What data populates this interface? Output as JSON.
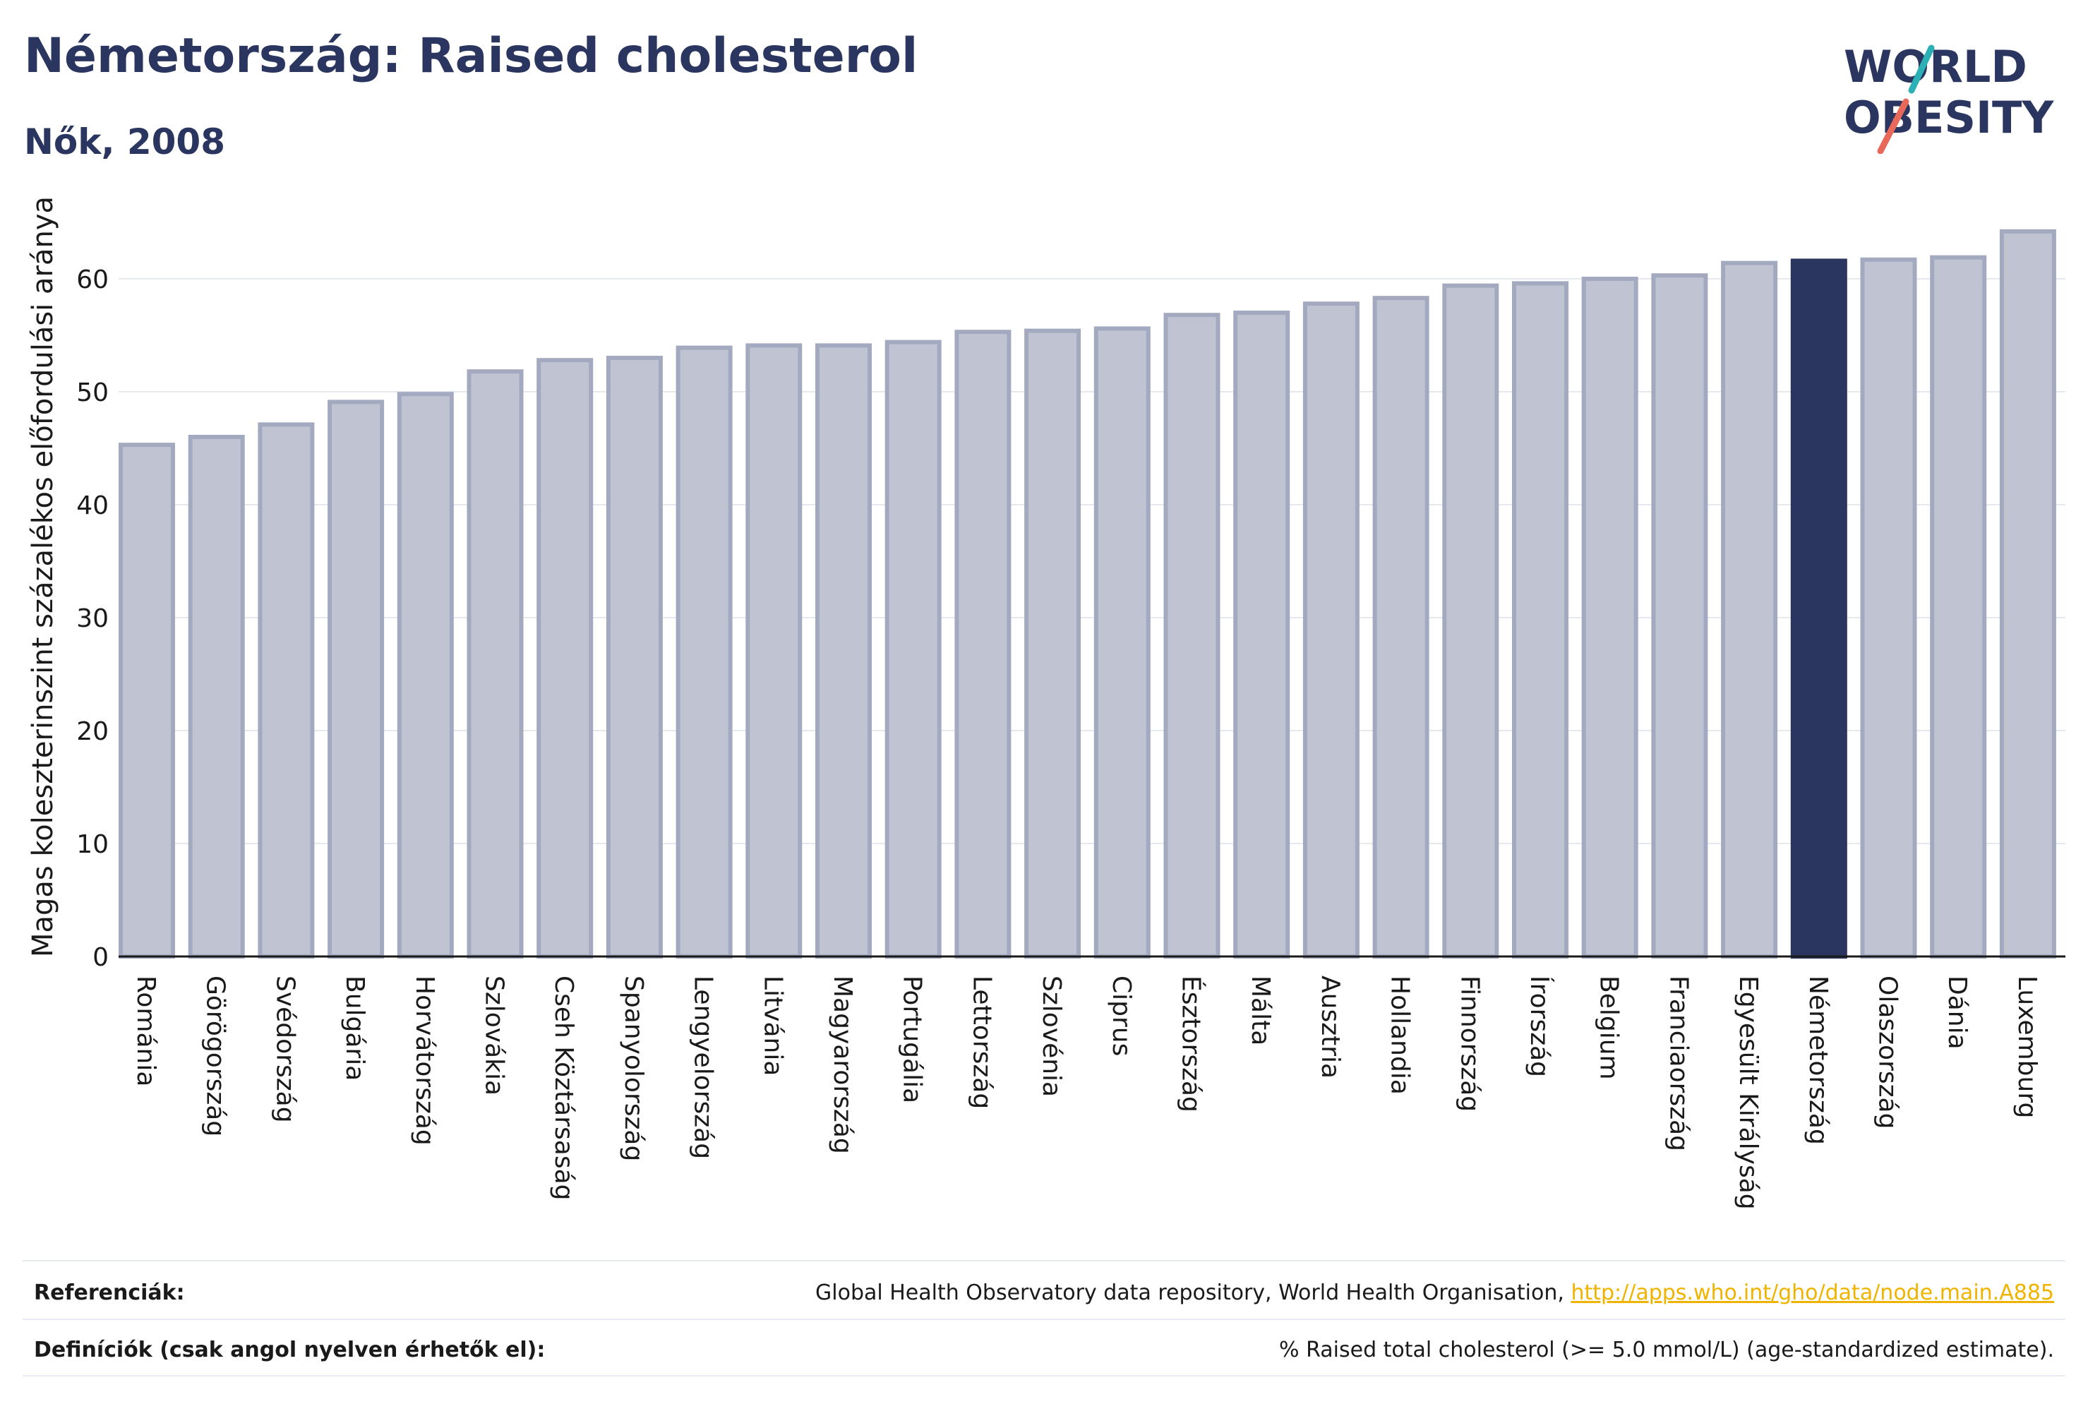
{
  "title": "Németország: Raised cholesterol",
  "subtitle": "Nők, 2008",
  "logo": {
    "line1": "WORLD",
    "line2": "OBESITY",
    "text_color": "#2a3560",
    "slash_colors": [
      "#2ab0b5",
      "#e8695a"
    ]
  },
  "colors": {
    "bar_fill": "#c0c4d2",
    "bar_stroke": "#a3aac0",
    "highlight": "#2a3560",
    "grid": "#e6e8ef",
    "axis": "#1a1a1a"
  },
  "chart_data": {
    "type": "bar",
    "ylabel": "Magas koleszterinszint százalékos előfordulási aránya",
    "ylim": [
      0,
      65
    ],
    "yticks": [
      0,
      10,
      20,
      30,
      40,
      50,
      60
    ],
    "grid": true,
    "highlight_category": "Németország",
    "categories": [
      "Románia",
      "Görögország",
      "Svédország",
      "Bulgária",
      "Horvátország",
      "Szlovákia",
      "Cseh Köztársaság",
      "Spanyolország",
      "Lengyelország",
      "Litvánia",
      "Magyarország",
      "Portugália",
      "Lettország",
      "Szlovénia",
      "Ciprus",
      "Észtország",
      "Málta",
      "Ausztria",
      "Hollandia",
      "Finnország",
      "Írország",
      "Belgium",
      "Franciaország",
      "Egyesült Királyság",
      "Németország",
      "Olaszország",
      "Dánia",
      "Luxemburg"
    ],
    "values": [
      45.3,
      46.0,
      47.1,
      49.1,
      49.8,
      51.8,
      52.8,
      53.0,
      53.9,
      54.1,
      54.1,
      54.4,
      55.3,
      55.4,
      55.6,
      56.8,
      57.0,
      57.8,
      58.3,
      59.4,
      59.6,
      60.0,
      60.3,
      61.4,
      61.6,
      61.7,
      61.9,
      64.2
    ]
  },
  "footer": {
    "ref_label": "Referenciák:",
    "ref_text": "Global Health Observatory data repository, World Health Organisation, ",
    "ref_link": "http://apps.who.int/gho/data/node.main.A885",
    "def_label": "Definíciók (csak angol nyelven érhetők el):",
    "def_text": "% Raised total cholesterol (>= 5.0 mmol/L) (age-standardized estimate)."
  }
}
